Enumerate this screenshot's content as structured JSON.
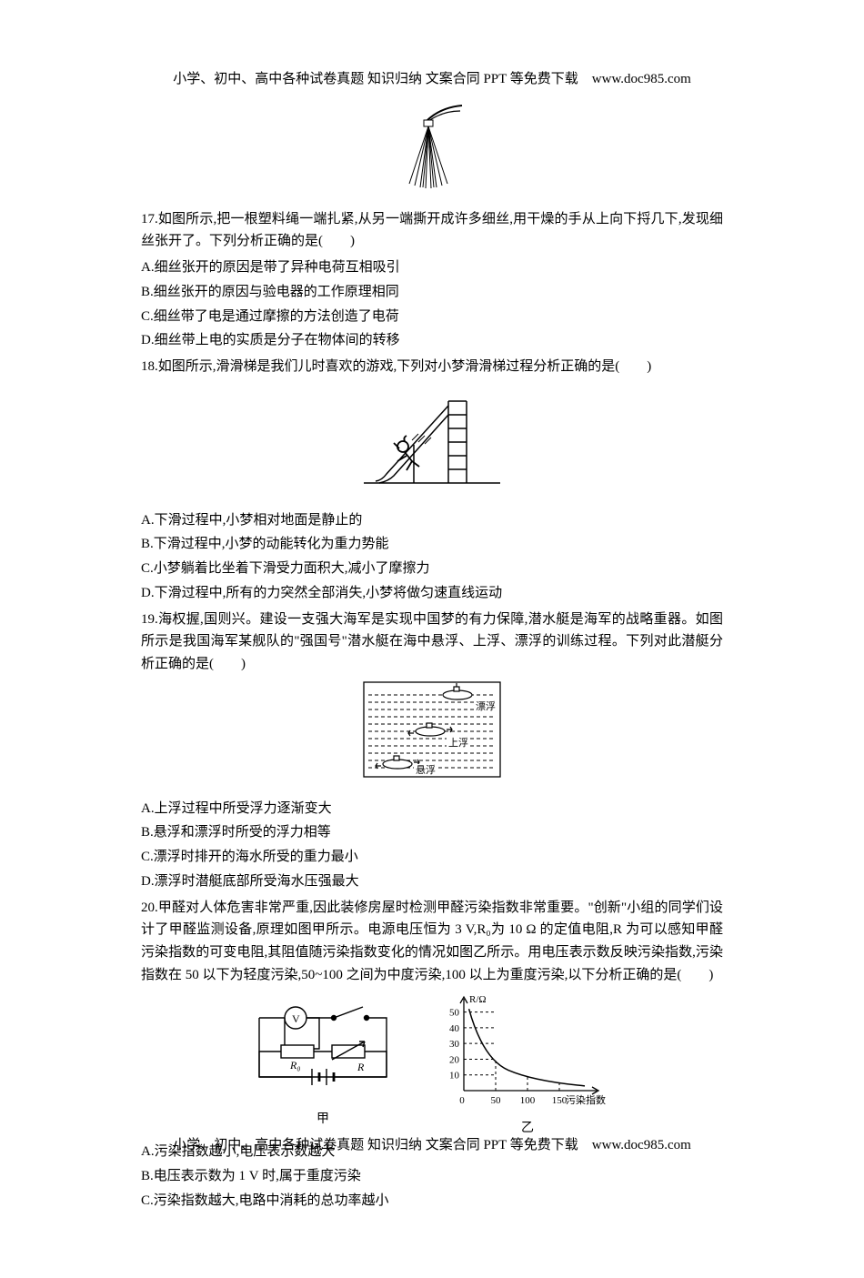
{
  "header_text": "小学、初中、高中各种试卷真题 知识归纳 文案合同 PPT 等免费下载　www.doc985.com",
  "footer_text": "小学、初中、高中各种试卷真题 知识归纳 文案合同 PPT 等免费下载　www.doc985.com",
  "q17": {
    "stem": "17.如图所示,把一根塑料绳一端扎紧,从另一端撕开成许多细丝,用干燥的手从上向下捋几下,发现细丝张开了。下列分析正确的是(　　)",
    "opts": {
      "a": "A.细丝张开的原因是带了异种电荷互相吸引",
      "b": "B.细丝张开的原因与验电器的工作原理相同",
      "c": "C.细丝带了电是通过摩擦的方法创造了电荷",
      "d": "D.细丝带上电的实质是分子在物体间的转移"
    }
  },
  "q18": {
    "stem": "18.如图所示,滑滑梯是我们儿时喜欢的游戏,下列对小梦滑滑梯过程分析正确的是(　　)",
    "opts": {
      "a": "A.下滑过程中,小梦相对地面是静止的",
      "b": "B.下滑过程中,小梦的动能转化为重力势能",
      "c": "C.小梦躺着比坐着下滑受力面积大,减小了摩擦力",
      "d": "D.下滑过程中,所有的力突然全部消失,小梦将做匀速直线运动"
    }
  },
  "q19": {
    "stem": "19.海权握,国则兴。建设一支强大海军是实现中国梦的有力保障,潜水艇是海军的战略重器。如图所示是我国海军某舰队的\"强国号\"潜水艇在海中悬浮、上浮、漂浮的训练过程。下列对此潜艇分析正确的是(　　)",
    "labels": {
      "piao": "漂浮",
      "shang": "上浮",
      "xuan": "悬浮"
    },
    "opts": {
      "a": "A.上浮过程中所受浮力逐渐变大",
      "b": "B.悬浮和漂浮时所受的浮力相等",
      "c": "C.漂浮时排开的海水所受的重力最小",
      "d": "D.漂浮时潜艇底部所受海水压强最大"
    }
  },
  "q20": {
    "stem": "20.甲醛对人体危害非常严重,因此装修房屋时检测甲醛污染指数非常重要。\"创新\"小组的同学们设计了甲醛监测设备,原理如图甲所示。电源电压恒为 3 V,R₀为 10 Ω 的定值电阻,R 为可以感知甲醛污染指数的可变电阻,其阻值随污染指数变化的情况如图乙所示。用电压表示数反映污染指数,污染指数在 50 以下为轻度污染,50~100 之间为中度污染,100 以上为重度污染,以下分析正确的是(　　)",
    "circuit": {
      "v_label": "V",
      "r0_label": "R₀",
      "r_label": "R",
      "caption": "甲"
    },
    "chart": {
      "y_label": "R/Ω",
      "x_label": "污染指数",
      "y_ticks": [
        "10",
        "20",
        "30",
        "40",
        "50"
      ],
      "x_ticks": [
        "0",
        "50",
        "100",
        "150"
      ],
      "x_range": [
        0,
        200
      ],
      "y_range": [
        0,
        55
      ],
      "dash_y_vals": [
        10,
        20,
        30,
        40,
        50
      ],
      "dash_x_vals": [
        50,
        100,
        150
      ],
      "curve_points": [
        [
          10,
          50
        ],
        [
          30,
          30
        ],
        [
          50,
          20
        ],
        [
          100,
          10
        ],
        [
          150,
          5
        ],
        [
          190,
          3
        ]
      ],
      "colors": {
        "axis": "#000000",
        "dash": "#000000",
        "curve": "#000000",
        "bg": "#ffffff"
      },
      "caption": "乙"
    },
    "opts": {
      "a": "A.污染指数越小,电压表示数越大",
      "b": "B.电压表示数为 1 V 时,属于重度污染",
      "c": "C.污染指数越大,电路中消耗的总功率越小"
    }
  }
}
